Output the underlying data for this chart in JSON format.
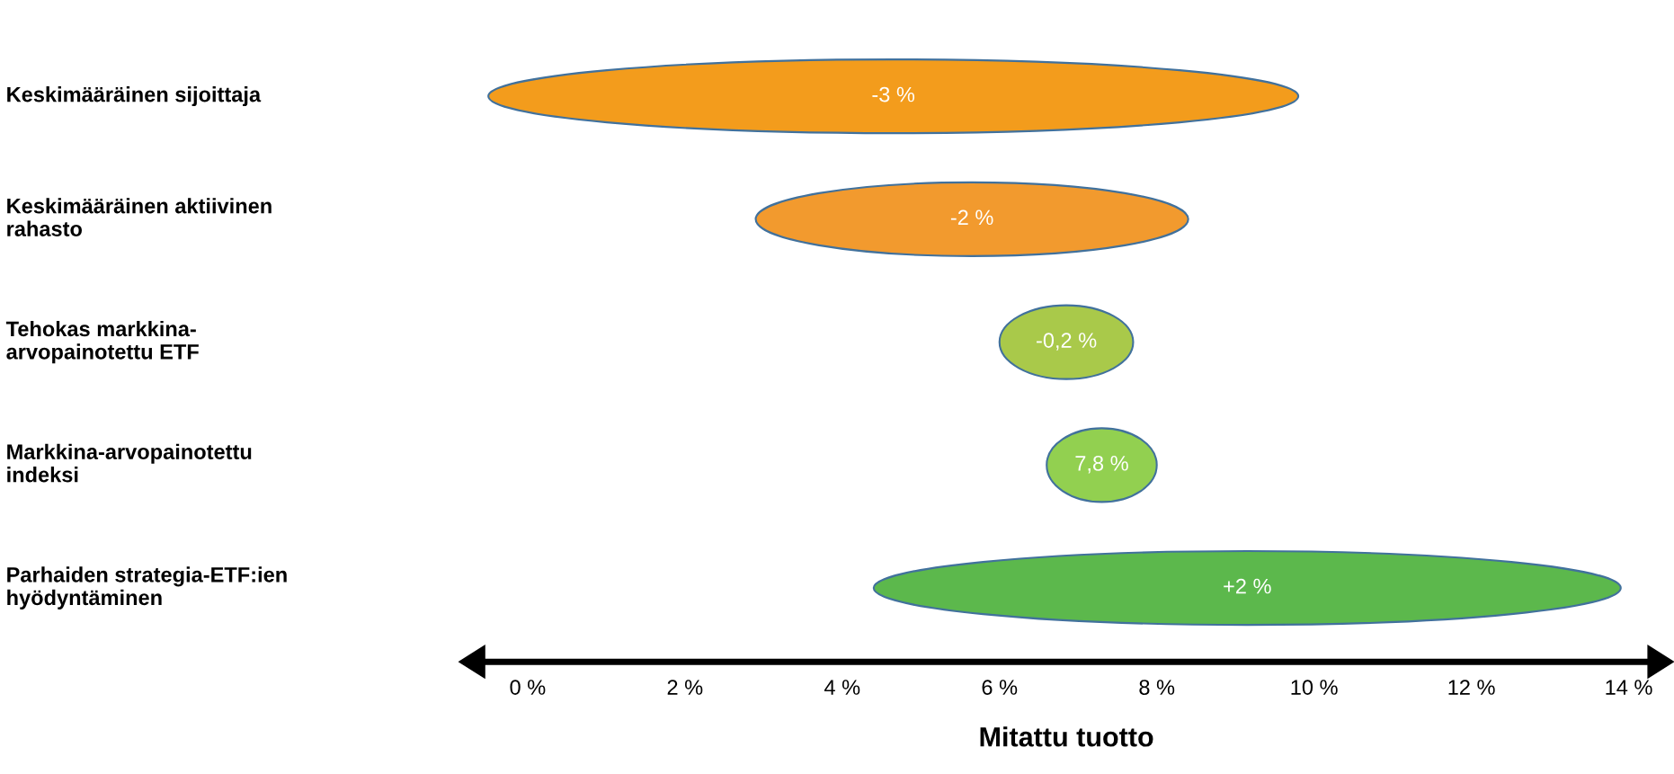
{
  "chart_data": {
    "type": "bar",
    "orientation": "horizontal",
    "xlabel": "Mitattu tuotto",
    "categories": [
      "Keskimääräinen sijoittaja",
      "Keskimääräinen aktiivinen\nrahasto",
      "Tehokas markkina-\narvopainotettu ETF",
      "Markkina-arvopainotettu\nindeksi",
      "Parhaiden strategia-ETF:ien\nhyödyntäminen"
    ],
    "base": [
      -0.5,
      2.9,
      6.0,
      6.6,
      4.4
    ],
    "values": [
      10.3,
      5.5,
      1.7,
      1.4,
      9.5
    ],
    "colors": [
      "#f39c1c",
      "#f29a2e",
      "#a9c94a",
      "#92d050",
      "#5cb84c"
    ],
    "xlim": [
      -0.6,
      14.3
    ],
    "xticks": [
      {
        "value": 0,
        "label": "0 %"
      },
      {
        "value": 2,
        "label": "2 %"
      },
      {
        "value": 4,
        "label": "4 %"
      },
      {
        "value": 6,
        "label": "6 %"
      },
      {
        "value": 8,
        "label": "8 %"
      },
      {
        "value": 10,
        "label": "10 %"
      },
      {
        "value": 12,
        "label": "12 %"
      },
      {
        "value": 14,
        "label": "14 %"
      }
    ],
    "annotations": [
      "-3 %",
      "-2 %",
      "-0,2 %",
      "7,8 %",
      "+2 %"
    ],
    "grid": false,
    "legend": false
  }
}
